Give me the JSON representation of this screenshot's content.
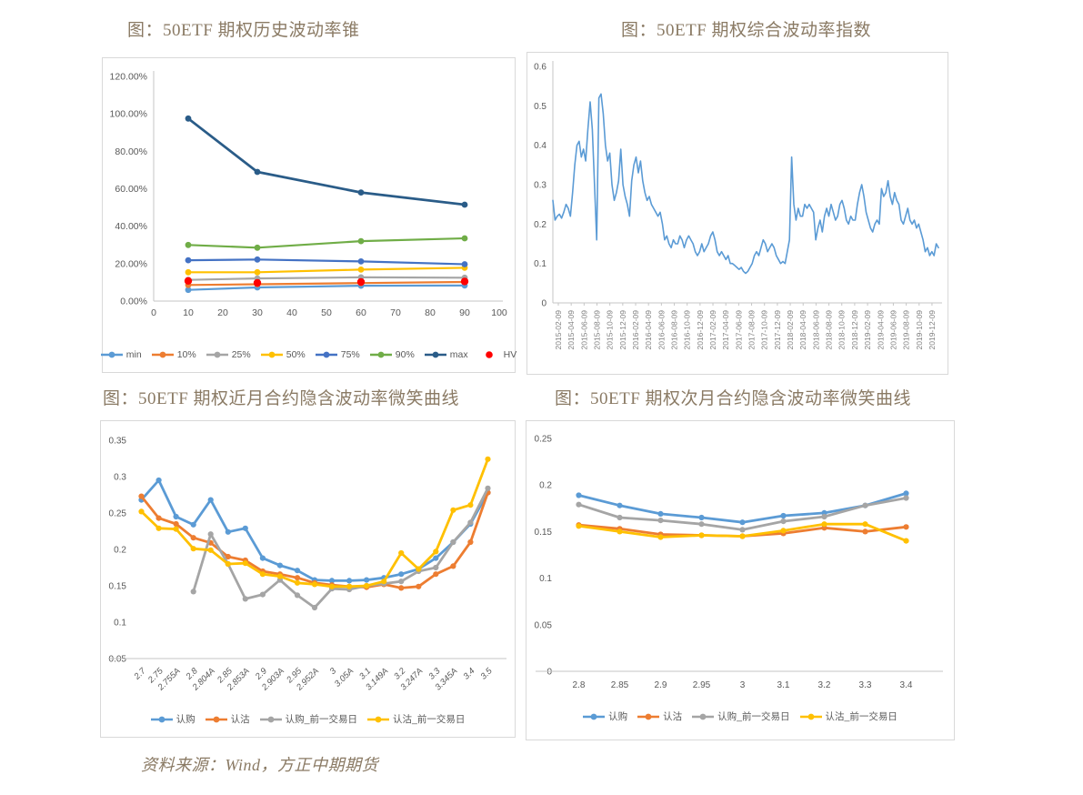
{
  "page": {
    "source_note": "资料来源：Wind，方正中期期货"
  },
  "colors": {
    "title_text": "#8a7a64",
    "axis_text": "#595959",
    "axis_line": "#c6c6c6",
    "box_border": "#d9d9d9",
    "series_light_blue": "#5B9BD5",
    "series_orange": "#ED7D31",
    "series_gray": "#A5A5A5",
    "series_yellow": "#FFC000",
    "series_mid_blue": "#4472C4",
    "series_green": "#70AD47",
    "series_dark_blue": "#2A5C88",
    "series_red": "#FF0000"
  },
  "chart_data": [
    {
      "id": "hv-cone",
      "title": "图：50ETF 期权历史波动率锥",
      "type": "line",
      "x": [
        10,
        30,
        60,
        90
      ],
      "xlim": [
        0,
        100
      ],
      "xticks": [
        0,
        10,
        20,
        30,
        40,
        50,
        60,
        70,
        80,
        90,
        100
      ],
      "ylim": [
        0,
        1.2
      ],
      "ytick_values": [
        0,
        0.2,
        0.4,
        0.6,
        0.8,
        1.0,
        1.2
      ],
      "ytick_labels": [
        "0.00%",
        "20.00%",
        "40.00%",
        "60.00%",
        "80.00%",
        "100.00%",
        "120.00%"
      ],
      "legend_position": "bottom",
      "grid": false,
      "series": [
        {
          "name": "min",
          "color": "#5B9BD5",
          "values": [
            0.06,
            0.073,
            0.082,
            0.083
          ]
        },
        {
          "name": "10%",
          "color": "#ED7D31",
          "values": [
            0.086,
            0.09,
            0.096,
            0.102
          ]
        },
        {
          "name": "25%",
          "color": "#A5A5A5",
          "values": [
            0.113,
            0.121,
            0.127,
            0.125
          ]
        },
        {
          "name": "50%",
          "color": "#FFC000",
          "values": [
            0.154,
            0.154,
            0.168,
            0.178
          ]
        },
        {
          "name": "75%",
          "color": "#4472C4",
          "values": [
            0.218,
            0.222,
            0.212,
            0.197
          ]
        },
        {
          "name": "90%",
          "color": "#70AD47",
          "values": [
            0.3,
            0.285,
            0.32,
            0.335
          ]
        },
        {
          "name": "max",
          "color": "#2A5C88",
          "values": [
            0.975,
            0.69,
            0.58,
            0.515
          ]
        },
        {
          "name": "HV",
          "color": "#FF0000",
          "style": "scatter",
          "values": [
            0.108,
            0.097,
            0.102,
            0.105
          ]
        }
      ]
    },
    {
      "id": "vol-index",
      "title": "图：50ETF 期权综合波动率指数",
      "type": "line",
      "ylim": [
        0,
        0.6
      ],
      "ytick_values": [
        0,
        0.1,
        0.2,
        0.3,
        0.4,
        0.5,
        0.6
      ],
      "ytick_labels": [
        "0",
        "0.1",
        "0.2",
        "0.3",
        "0.4",
        "0.5",
        "0.6"
      ],
      "xtick_labels": [
        "2015-02-09",
        "2015-04-09",
        "2015-06-09",
        "2015-08-09",
        "2015-10-09",
        "2015-12-09",
        "2016-02-09",
        "2016-04-09",
        "2016-06-09",
        "2016-08-09",
        "2016-10-09",
        "2016-12-09",
        "2017-02-09",
        "2017-04-09",
        "2017-06-09",
        "2017-08-09",
        "2017-10-09",
        "2017-12-09",
        "2018-02-09",
        "2018-04-09",
        "2018-06-09",
        "2018-08-09",
        "2018-10-09",
        "2018-12-09",
        "2019-02-09",
        "2019-04-09",
        "2019-06-09",
        "2019-08-09",
        "2019-10-09",
        "2019-12-09"
      ],
      "legend_position": "none",
      "grid": false,
      "series": [
        {
          "name": "综合波动率指数",
          "color": "#5B9BD5",
          "values": [
            0.26,
            0.21,
            0.22,
            0.225,
            0.215,
            0.23,
            0.25,
            0.24,
            0.22,
            0.28,
            0.35,
            0.4,
            0.41,
            0.37,
            0.39,
            0.36,
            0.44,
            0.51,
            0.44,
            0.3,
            0.16,
            0.52,
            0.53,
            0.48,
            0.4,
            0.36,
            0.38,
            0.3,
            0.26,
            0.28,
            0.31,
            0.39,
            0.3,
            0.27,
            0.25,
            0.22,
            0.31,
            0.35,
            0.37,
            0.33,
            0.36,
            0.31,
            0.28,
            0.26,
            0.27,
            0.25,
            0.24,
            0.23,
            0.22,
            0.23,
            0.2,
            0.16,
            0.17,
            0.15,
            0.14,
            0.16,
            0.15,
            0.15,
            0.17,
            0.16,
            0.14,
            0.16,
            0.17,
            0.16,
            0.15,
            0.13,
            0.12,
            0.13,
            0.15,
            0.13,
            0.14,
            0.15,
            0.17,
            0.18,
            0.16,
            0.13,
            0.12,
            0.13,
            0.12,
            0.11,
            0.12,
            0.1,
            0.1,
            0.095,
            0.09,
            0.085,
            0.09,
            0.08,
            0.075,
            0.08,
            0.09,
            0.1,
            0.12,
            0.13,
            0.12,
            0.14,
            0.16,
            0.15,
            0.13,
            0.14,
            0.15,
            0.14,
            0.12,
            0.11,
            0.1,
            0.105,
            0.1,
            0.13,
            0.16,
            0.37,
            0.25,
            0.21,
            0.24,
            0.22,
            0.22,
            0.25,
            0.24,
            0.25,
            0.24,
            0.23,
            0.16,
            0.19,
            0.21,
            0.18,
            0.22,
            0.24,
            0.22,
            0.25,
            0.23,
            0.21,
            0.22,
            0.25,
            0.26,
            0.24,
            0.21,
            0.2,
            0.22,
            0.21,
            0.21,
            0.25,
            0.28,
            0.3,
            0.27,
            0.23,
            0.21,
            0.19,
            0.18,
            0.2,
            0.21,
            0.2,
            0.29,
            0.27,
            0.28,
            0.31,
            0.27,
            0.25,
            0.28,
            0.26,
            0.25,
            0.21,
            0.2,
            0.22,
            0.24,
            0.21,
            0.2,
            0.21,
            0.19,
            0.2,
            0.18,
            0.16,
            0.13,
            0.14,
            0.12,
            0.13,
            0.12,
            0.15,
            0.14
          ]
        }
      ]
    },
    {
      "id": "near-smile",
      "title": "图：50ETF 期权近月合约隐含波动率微笑曲线",
      "type": "line",
      "categories": [
        "2.7",
        "2.75",
        "2.755A",
        "2.8",
        "2.804A",
        "2.85",
        "2.853A",
        "2.9",
        "2.903A",
        "2.95",
        "2.952A",
        "3",
        "3.05A",
        "3.1",
        "3.149A",
        "3.2",
        "3.247A",
        "3.3",
        "3.345A",
        "3.4",
        "3.5"
      ],
      "ylim": [
        0.05,
        0.35
      ],
      "ytick_values": [
        0.05,
        0.1,
        0.15,
        0.2,
        0.25,
        0.3,
        0.35
      ],
      "ytick_labels": [
        "0.05",
        "0.1",
        "0.15",
        "0.2",
        "0.25",
        "0.3",
        "0.35"
      ],
      "legend_position": "bottom",
      "grid": false,
      "series": [
        {
          "name": "认购",
          "color": "#5B9BD5",
          "values": [
            0.268,
            0.295,
            0.245,
            0.234,
            0.268,
            0.224,
            0.229,
            0.188,
            0.178,
            0.171,
            0.158,
            0.157,
            0.157,
            0.158,
            0.161,
            0.166,
            0.173,
            0.188,
            0.21,
            0.235,
            0.278
          ]
        },
        {
          "name": "认沽",
          "color": "#ED7D31",
          "values": [
            0.273,
            0.243,
            0.235,
            0.216,
            0.209,
            0.19,
            0.185,
            0.17,
            0.166,
            0.161,
            0.154,
            0.151,
            0.149,
            0.148,
            0.152,
            0.147,
            0.149,
            0.166,
            0.177,
            0.21,
            0.278
          ]
        },
        {
          "name": "认购_前一交易日",
          "color": "#A5A5A5",
          "values": [
            null,
            null,
            null,
            0.142,
            0.221,
            0.18,
            0.132,
            0.138,
            0.158,
            0.137,
            0.12,
            0.146,
            0.145,
            0.15,
            0.153,
            0.156,
            0.17,
            0.175,
            0.21,
            0.237,
            0.284
          ]
        },
        {
          "name": "认沽_前一交易日",
          "color": "#FFC000",
          "values": [
            0.252,
            0.229,
            0.228,
            0.201,
            0.199,
            0.18,
            0.181,
            0.166,
            0.163,
            0.154,
            0.152,
            0.149,
            0.149,
            0.15,
            0.156,
            0.195,
            0.173,
            0.197,
            0.254,
            0.261,
            0.324
          ]
        }
      ]
    },
    {
      "id": "next-smile",
      "title": "图：50ETF 期权次月合约隐含波动率微笑曲线",
      "type": "line",
      "categories": [
        "2.8",
        "2.85",
        "2.9",
        "2.95",
        "3",
        "3.1",
        "3.2",
        "3.3",
        "3.4"
      ],
      "ylim": [
        0,
        0.25
      ],
      "ytick_values": [
        0,
        0.05,
        0.1,
        0.15,
        0.2,
        0.25
      ],
      "ytick_labels": [
        "0",
        "0.05",
        "0.1",
        "0.15",
        "0.2",
        "0.25"
      ],
      "legend_position": "bottom",
      "grid": false,
      "series": [
        {
          "name": "认购",
          "color": "#5B9BD5",
          "values": [
            0.189,
            0.178,
            0.169,
            0.165,
            0.16,
            0.167,
            0.17,
            0.178,
            0.191
          ]
        },
        {
          "name": "认沽",
          "color": "#ED7D31",
          "values": [
            0.157,
            0.153,
            0.147,
            0.146,
            0.145,
            0.148,
            0.154,
            0.15,
            0.155
          ]
        },
        {
          "name": "认购_前一交易日",
          "color": "#A5A5A5",
          "values": [
            0.179,
            0.165,
            0.162,
            0.158,
            0.152,
            0.161,
            0.166,
            0.178,
            0.186
          ]
        },
        {
          "name": "认沽_前一交易日",
          "color": "#FFC000",
          "values": [
            0.156,
            0.15,
            0.144,
            0.146,
            0.145,
            0.151,
            0.158,
            0.158,
            0.14
          ]
        }
      ]
    }
  ]
}
